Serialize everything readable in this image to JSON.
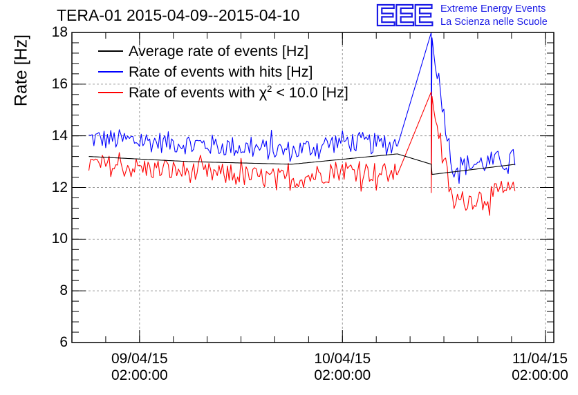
{
  "header": {
    "title": "TERA-01 2015-04-09--2015-04-10",
    "logo_text": "EEE",
    "logo_line1": "Extreme Energy Events",
    "logo_line2": "La Scienza nelle Scuole"
  },
  "colors": {
    "average": "#000000",
    "hits": "#0000ff",
    "chi2": "#ff0000",
    "logo": "#1a1ae6",
    "grid": "#9a9a9a"
  },
  "chart_data": {
    "type": "line",
    "title": "TERA-01 2015-04-09--2015-04-10",
    "xlabel": "",
    "ylabel": "Rate [Hz]",
    "ylim": [
      6,
      18
    ],
    "yticks": [
      6,
      8,
      10,
      12,
      14,
      16,
      18
    ],
    "xlim": [
      "2015-04-08 18:00",
      "2015-04-11 03:00"
    ],
    "xticks": [
      {
        "date": "09/04/15",
        "time": "02:00:00",
        "x": "2015-04-09 02:00"
      },
      {
        "date": "10/04/15",
        "time": "02:00:00",
        "x": "2015-04-10 02:00"
      },
      {
        "date": "11/04/15",
        "time": "02:00:00",
        "x": "2015-04-11 02:00"
      }
    ],
    "grid": true,
    "legend_position": "top-left",
    "series": [
      {
        "name": "Average rate of events [Hz]",
        "x": [
          "2015-04-08 20:00",
          "2015-04-09 08:00",
          "2015-04-09 20:00",
          "2015-04-10 08:30",
          "2015-04-10 12:30",
          "2015-04-10 22:30"
        ],
        "y": [
          13.2,
          13.0,
          12.9,
          13.3,
          12.5,
          12.9
        ]
      },
      {
        "name": "Rate of events with hits [Hz]",
        "x": [
          "2015-04-08 20:00",
          "2015-04-09 08:00",
          "2015-04-09 20:00",
          "2015-04-10 02:00",
          "2015-04-10 08:30",
          "2015-04-10 12:30",
          "2015-04-10 15:00",
          "2015-04-10 22:30"
        ],
        "y": [
          13.9,
          13.7,
          13.4,
          13.8,
          13.6,
          18.0,
          12.8,
          13.1
        ]
      },
      {
        "name": "Rate of events with χ² < 10.0 [Hz]",
        "x": [
          "2015-04-08 20:00",
          "2015-04-09 08:00",
          "2015-04-09 20:00",
          "2015-04-10 02:00",
          "2015-04-10 08:30",
          "2015-04-10 12:30",
          "2015-04-10 15:00",
          "2015-04-10 22:30"
        ],
        "y": [
          12.9,
          12.6,
          12.3,
          12.7,
          12.5,
          15.7,
          11.4,
          11.9
        ]
      }
    ],
    "legend": [
      {
        "label": "Average rate of events [Hz]"
      },
      {
        "label": "Rate of events with hits [Hz]"
      },
      {
        "label_prefix": "Rate of events with ",
        "symbol": "χ",
        "sup": "2",
        "label_suffix": " < 10.0 [Hz]"
      }
    ]
  }
}
